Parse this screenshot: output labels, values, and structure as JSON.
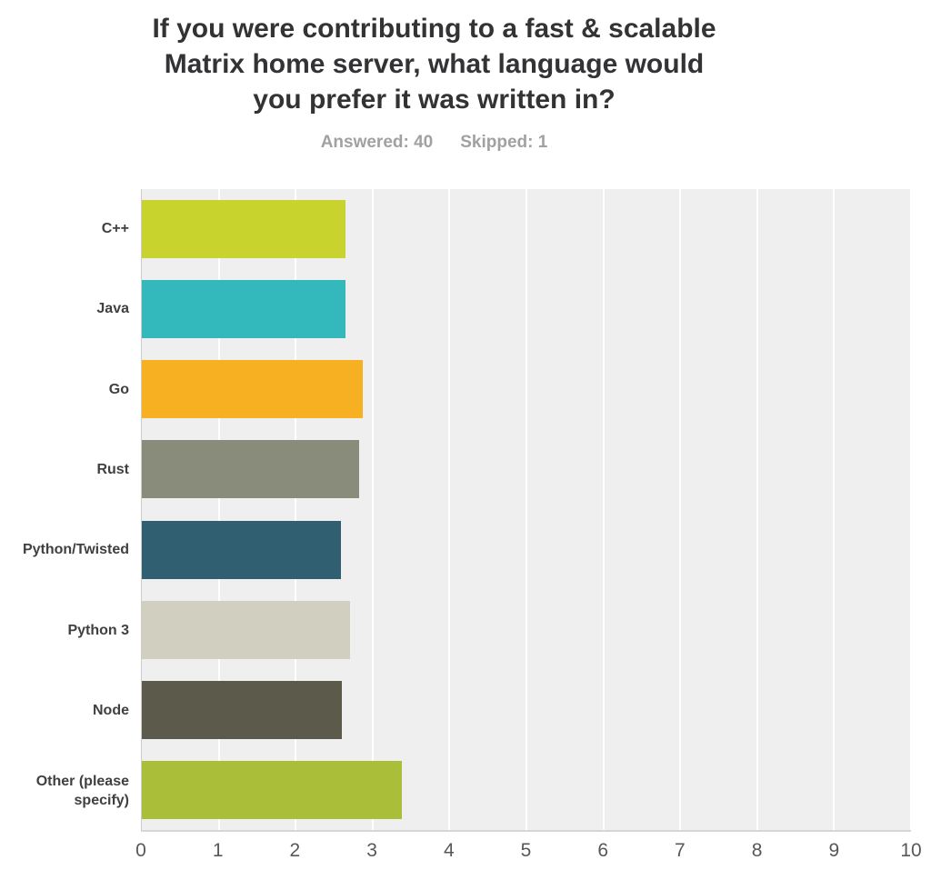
{
  "header": {
    "title_lines": [
      "If you were contributing to a fast & scalable",
      "Matrix home server, what language would",
      "you prefer it was written in?"
    ],
    "answered_text": "Answered: 40",
    "skipped_text": "Skipped: 1"
  },
  "chart_data": {
    "type": "bar",
    "orientation": "horizontal",
    "title": "If you were contributing to a fast & scalable Matrix home server, what language would you prefer it was written in?",
    "answered": 40,
    "skipped": 1,
    "categories": [
      "C++",
      "Java",
      "Go",
      "Rust",
      "Python/Twisted",
      "Python 3",
      "Node",
      "Other (please specify)"
    ],
    "values": [
      2.65,
      2.65,
      2.87,
      2.82,
      2.59,
      2.71,
      2.6,
      3.38
    ],
    "colors": [
      "#c9d32e",
      "#33b9bb",
      "#f6b021",
      "#8a8c7b",
      "#2f5f70",
      "#d0cfc0",
      "#5c5b4b",
      "#aabe39"
    ],
    "x_ticks": [
      0,
      1,
      2,
      3,
      4,
      5,
      6,
      7,
      8,
      9,
      10
    ],
    "xlim": [
      0,
      10
    ],
    "xlabel": "",
    "ylabel": "",
    "grid": true,
    "gridline_color": "#ffffff",
    "plot_background": "#efefef",
    "legend": "none"
  }
}
